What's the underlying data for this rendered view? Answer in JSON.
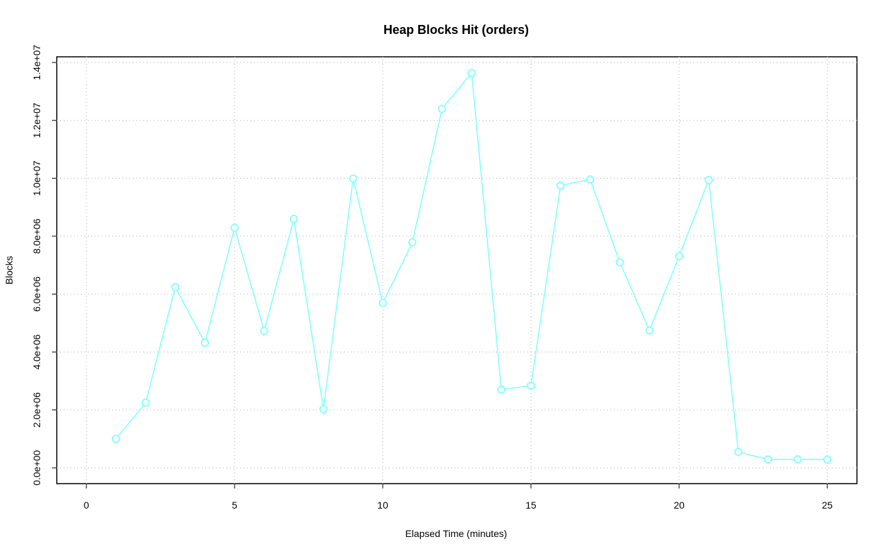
{
  "chart_data": {
    "type": "line",
    "title": "Heap Blocks Hit (orders)",
    "x_label": "Elapsed Time (minutes)",
    "y_label": "Blocks",
    "x": [
      1,
      2,
      3,
      4,
      5,
      6,
      7,
      8,
      9,
      10,
      11,
      12,
      13,
      14,
      15,
      16,
      17,
      18,
      19,
      20,
      21,
      22,
      23,
      24,
      25
    ],
    "values": [
      1000000,
      2250000,
      6240000,
      4320000,
      8290000,
      4730000,
      8600000,
      2030000,
      9990000,
      5690000,
      7790000,
      12400000,
      13640000,
      2700000,
      2840000,
      9750000,
      9960000,
      7100000,
      4750000,
      7310000,
      9940000,
      550000,
      290000,
      290000,
      290000
    ],
    "color": "#80ffff",
    "xlim": [
      -1,
      26
    ],
    "xticks": [
      0,
      5,
      10,
      15,
      20,
      25
    ],
    "ylim": [
      -546000,
      14196000
    ],
    "yticks": [
      {
        "value": 0,
        "label": "0.0e+00"
      },
      {
        "value": 2000000,
        "label": "2.0e+06"
      },
      {
        "value": 4000000,
        "label": "4.0e+06"
      },
      {
        "value": 6000000,
        "label": "6.0e+06"
      },
      {
        "value": 8000000,
        "label": "8.0e+06"
      },
      {
        "value": 10000000,
        "label": "1.0e+07"
      },
      {
        "value": 12000000,
        "label": "1.2e+07"
      },
      {
        "value": 14000000,
        "label": "1.4e+07"
      }
    ],
    "grid": true
  }
}
